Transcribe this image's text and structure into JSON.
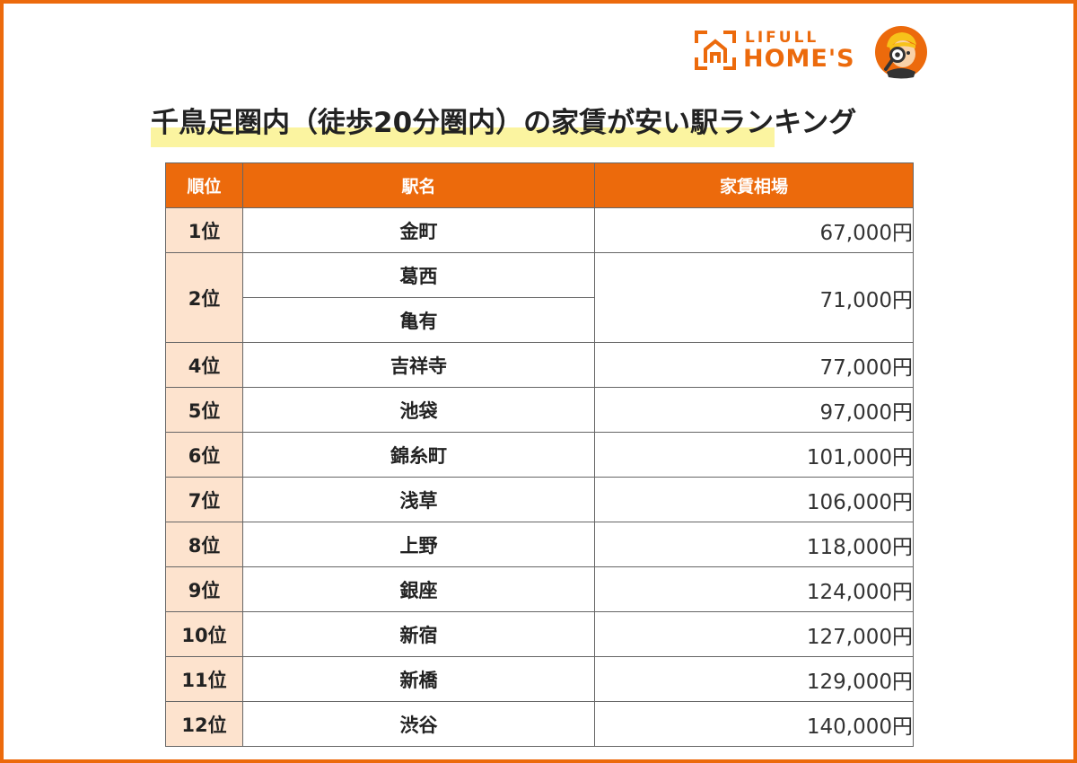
{
  "brand": {
    "line1": "LIFULL",
    "line2": "HOME'S"
  },
  "title": "千鳥足圏内（徒歩20分圏内）の家賃が安い駅ランキング",
  "table": {
    "headers": [
      "順位",
      "駅名",
      "家賃相場"
    ],
    "rows": [
      {
        "rank": "1位",
        "stations": [
          "金町"
        ],
        "rent": "67,000円"
      },
      {
        "rank": "2位",
        "stations": [
          "葛西",
          "亀有"
        ],
        "rent": "71,000円"
      },
      {
        "rank": "4位",
        "stations": [
          "吉祥寺"
        ],
        "rent": "77,000円"
      },
      {
        "rank": "5位",
        "stations": [
          "池袋"
        ],
        "rent": "97,000円"
      },
      {
        "rank": "6位",
        "stations": [
          "錦糸町"
        ],
        "rent": "101,000円"
      },
      {
        "rank": "7位",
        "stations": [
          "浅草"
        ],
        "rent": "106,000円"
      },
      {
        "rank": "8位",
        "stations": [
          "上野"
        ],
        "rent": "118,000円"
      },
      {
        "rank": "9位",
        "stations": [
          "銀座"
        ],
        "rent": "124,000円"
      },
      {
        "rank": "10位",
        "stations": [
          "新宿"
        ],
        "rent": "127,000円"
      },
      {
        "rank": "11位",
        "stations": [
          "新橋"
        ],
        "rent": "129,000円"
      },
      {
        "rank": "12位",
        "stations": [
          "渋谷"
        ],
        "rent": "140,000円"
      }
    ]
  },
  "colors": {
    "accent": "#ec6a0c",
    "rank_bg": "#fde3ce",
    "highlight": "#fbf4a0"
  },
  "icons": {
    "logo": "house-logo-icon",
    "mascot": "mascot-magnifier-icon"
  }
}
